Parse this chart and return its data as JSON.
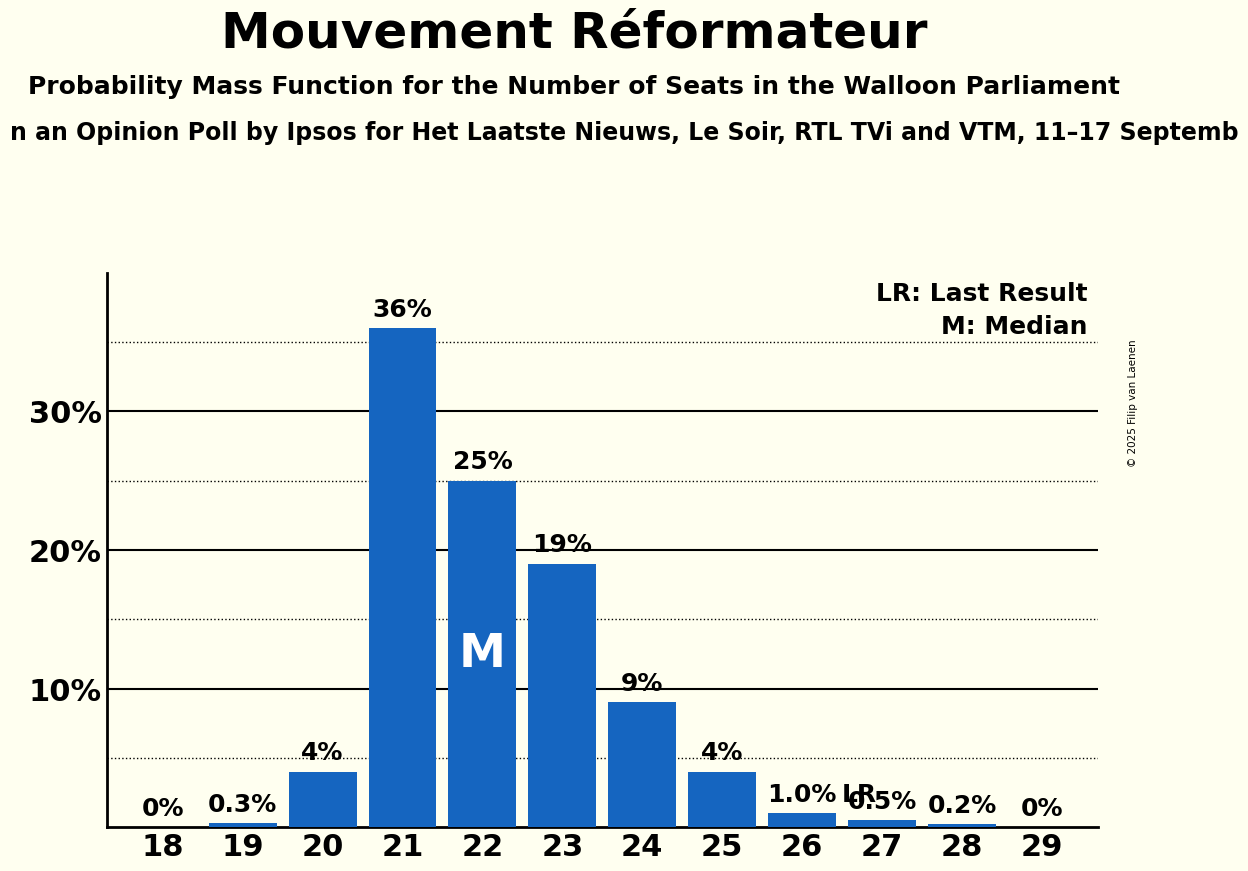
{
  "title": "Mouvement Réformateur",
  "subtitle": "Probability Mass Function for the Number of Seats in the Walloon Parliament",
  "subsubtitle": "n an Opinion Poll by Ipsos for Het Laatste Nieuws, Le Soir, RTL TVi and VTM, 11–17 Septemb",
  "copyright": "© 2025 Filip van Laenen",
  "categories": [
    18,
    19,
    20,
    21,
    22,
    23,
    24,
    25,
    26,
    27,
    28,
    29
  ],
  "values": [
    0.0,
    0.3,
    4.0,
    36.0,
    25.0,
    19.0,
    9.0,
    4.0,
    1.0,
    0.5,
    0.2,
    0.0
  ],
  "labels": [
    "0%",
    "0.3%",
    "4%",
    "36%",
    "25%",
    "19%",
    "9%",
    "4%",
    "1.0%",
    "0.5%",
    "0.2%",
    "0%"
  ],
  "bar_color": "#1565C0",
  "background_color": "#FFFFF0",
  "median_bar": 22,
  "median_label": "M",
  "lr_bar": 26,
  "lr_label": "LR",
  "ylim": [
    0,
    40
  ],
  "yticks": [
    0,
    10,
    20,
    30
  ],
  "ytick_labels": [
    "",
    "10%",
    "20%",
    "30%"
  ],
  "dotted_lines": [
    5,
    15,
    25,
    35
  ],
  "solid_lines": [
    10,
    20,
    30
  ],
  "legend_lr": "LR: Last Result",
  "legend_m": "M: Median",
  "title_fontsize": 36,
  "subtitle_fontsize": 18,
  "subsubtitle_fontsize": 17,
  "ytick_fontsize": 22,
  "xtick_fontsize": 22,
  "bar_label_fontsize": 18,
  "legend_fontsize": 18
}
